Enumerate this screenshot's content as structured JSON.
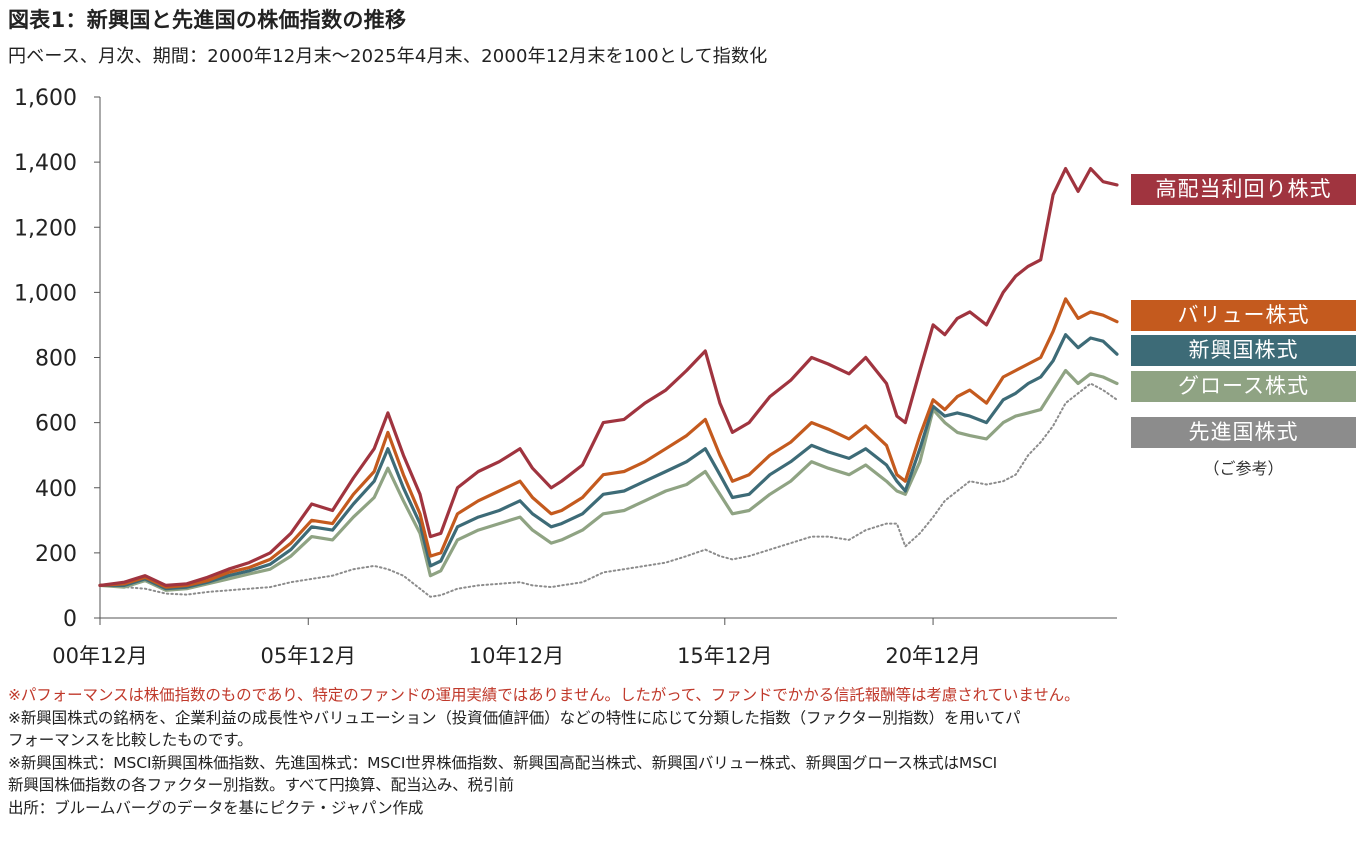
{
  "title": "図表1：新興国と先進国の株価指数の推移",
  "subtitle": "円ベース、月次、期間：2000年12月末～2025年4月末、2000年12月末を100として指数化",
  "chart_data": {
    "type": "line",
    "title": "図表1：新興国と先進国の株価指数の推移",
    "xlabel": "",
    "ylabel": "",
    "ylim": [
      0,
      1600
    ],
    "xlim": [
      2000.917,
      2025.333
    ],
    "grid": false,
    "legend_placement": "right",
    "yticks": [
      "0",
      "200",
      "400",
      "600",
      "800",
      "1,000",
      "1,200",
      "1,400",
      "1,600"
    ],
    "ytick_values": [
      0,
      200,
      400,
      600,
      800,
      1000,
      1200,
      1400,
      1600
    ],
    "xticks": [
      "00年12月",
      "05年12月",
      "10年12月",
      "15年12月",
      "20年12月"
    ],
    "xtick_values": [
      2000.917,
      2005.917,
      2010.917,
      2015.917,
      2020.917
    ],
    "x": [
      2000.917,
      2001.5,
      2002.0,
      2002.5,
      2003.0,
      2003.5,
      2004.0,
      2004.5,
      2005.0,
      2005.5,
      2006.0,
      2006.5,
      2007.0,
      2007.5,
      2007.83,
      2008.2,
      2008.6,
      2008.85,
      2009.1,
      2009.5,
      2010.0,
      2010.5,
      2011.0,
      2011.3,
      2011.75,
      2012.0,
      2012.5,
      2013.0,
      2013.5,
      2014.0,
      2014.5,
      2015.0,
      2015.45,
      2015.8,
      2016.1,
      2016.5,
      2017.0,
      2017.5,
      2018.0,
      2018.4,
      2018.9,
      2019.3,
      2019.8,
      2020.05,
      2020.25,
      2020.6,
      2020.917,
      2021.2,
      2021.5,
      2021.8,
      2022.2,
      2022.6,
      2022.9,
      2023.2,
      2023.5,
      2023.8,
      2024.1,
      2024.4,
      2024.7,
      2025.0,
      2025.333
    ],
    "series": [
      {
        "name": "高配当利回り株式",
        "color": "#a0343f",
        "style": "solid",
        "values": [
          100,
          110,
          130,
          100,
          105,
          125,
          150,
          170,
          200,
          260,
          350,
          330,
          430,
          520,
          630,
          500,
          380,
          250,
          260,
          400,
          450,
          480,
          520,
          460,
          400,
          420,
          470,
          600,
          610,
          660,
          700,
          760,
          820,
          660,
          570,
          600,
          680,
          730,
          800,
          780,
          750,
          800,
          720,
          620,
          600,
          760,
          900,
          870,
          920,
          940,
          900,
          1000,
          1050,
          1080,
          1100,
          1300,
          1380,
          1310,
          1380,
          1340,
          1330
        ]
      },
      {
        "name": "バリュー株式",
        "color": "#c45a1e",
        "style": "solid",
        "values": [
          100,
          105,
          125,
          95,
          100,
          115,
          140,
          155,
          180,
          230,
          300,
          290,
          380,
          450,
          570,
          440,
          320,
          190,
          200,
          320,
          360,
          390,
          420,
          370,
          320,
          330,
          370,
          440,
          450,
          480,
          520,
          560,
          610,
          500,
          420,
          440,
          500,
          540,
          600,
          580,
          550,
          590,
          530,
          440,
          420,
          560,
          670,
          640,
          680,
          700,
          660,
          740,
          760,
          780,
          800,
          880,
          980,
          920,
          940,
          930,
          910
        ]
      },
      {
        "name": "新興国株式",
        "color": "#3d6b77",
        "style": "solid",
        "values": [
          100,
          100,
          120,
          90,
          95,
          110,
          130,
          145,
          165,
          210,
          280,
          270,
          350,
          420,
          520,
          400,
          290,
          160,
          175,
          280,
          310,
          330,
          360,
          320,
          280,
          290,
          320,
          380,
          390,
          420,
          450,
          480,
          520,
          440,
          370,
          380,
          440,
          480,
          530,
          510,
          490,
          520,
          470,
          420,
          390,
          520,
          650,
          620,
          630,
          620,
          600,
          670,
          690,
          720,
          740,
          790,
          870,
          830,
          860,
          850,
          810
        ]
      },
      {
        "name": "グロース株式",
        "color": "#8fa383",
        "style": "solid",
        "values": [
          100,
          95,
          115,
          85,
          90,
          105,
          120,
          135,
          150,
          190,
          250,
          240,
          310,
          370,
          460,
          360,
          260,
          130,
          145,
          240,
          270,
          290,
          310,
          270,
          230,
          240,
          270,
          320,
          330,
          360,
          390,
          410,
          450,
          380,
          320,
          330,
          380,
          420,
          480,
          460,
          440,
          470,
          420,
          390,
          380,
          480,
          640,
          600,
          570,
          560,
          550,
          600,
          620,
          630,
          640,
          700,
          760,
          720,
          750,
          740,
          720
        ]
      },
      {
        "name": "先進国株式",
        "color": "#8c8c8c",
        "style": "dotted",
        "values": [
          100,
          95,
          90,
          75,
          72,
          80,
          85,
          90,
          95,
          110,
          120,
          130,
          150,
          160,
          150,
          130,
          90,
          65,
          70,
          90,
          100,
          105,
          110,
          100,
          95,
          100,
          110,
          140,
          150,
          160,
          170,
          190,
          210,
          190,
          180,
          190,
          210,
          230,
          250,
          250,
          240,
          270,
          290,
          290,
          220,
          260,
          310,
          360,
          390,
          420,
          410,
          420,
          440,
          500,
          540,
          590,
          660,
          690,
          720,
          700,
          670
        ]
      }
    ],
    "legend_note": "（ご参考）"
  },
  "notes": [
    "※パフォーマンスは株価指数のものであり、特定のファンドの運用実績ではありません。したがって、ファンドでかかる信託報酬等は考慮されていません。",
    "※新興国株式の銘柄を、企業利益の成長性やバリュエーション（投資価値評価）などの特性に応じて分類した指数（ファクター別指数）を用いてパ",
    "フォーマンスを比較したものです。",
    "※新興国株式：MSCI新興国株価指数、先進国株式：MSCI世界株価指数、新興国高配当株式、新興国バリュー株式、新興国グロース株式はMSCI",
    "新興国株価指数の各ファクター別指数。すべて円換算、配当込み、税引前",
    "出所：ブルームバーグのデータを基にピクテ・ジャパン作成"
  ]
}
